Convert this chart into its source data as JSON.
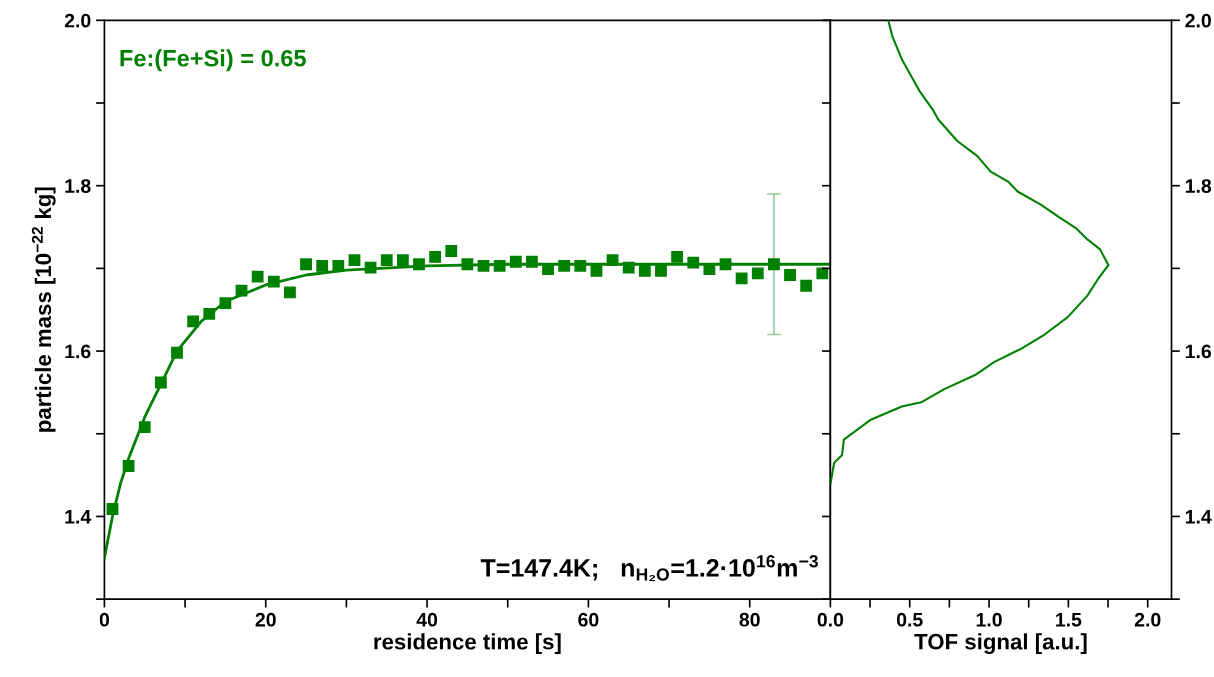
{
  "chart_data": [
    {
      "type": "scatter",
      "xlabel": "residence time [s]",
      "ylabel": "particle mass [10$^{−22}$ kg]",
      "annotations": [
        "Fe:(Fe+Si) = 0.65",
        "T=147.4K;   n$_{H₂O}$=1.2·10$^{16}$m$^{−3}$"
      ],
      "xlim": [
        0,
        90
      ],
      "xticks": [
        0,
        {
          "value": 10,
          "label": null
        },
        20,
        {
          "value": 30,
          "label": null
        },
        40,
        {
          "value": 50,
          "label": null
        },
        60,
        {
          "value": 70,
          "label": null
        },
        80
      ],
      "ylim": [
        1.3,
        2.0
      ],
      "yticks": [
        {
          "value": 1.3,
          "label": null
        },
        1.4,
        {
          "value": 1.5,
          "label": null
        },
        1.6,
        {
          "value": 1.7,
          "label": null
        },
        1.8,
        {
          "value": 1.9,
          "label": null
        },
        {
          "value": 2,
          "label": "2.0"
        }
      ],
      "grid": false,
      "legend": false,
      "series": [
        {
          "color": "#008000",
          "marker": "square",
          "x": [
            1,
            3,
            5,
            7,
            9,
            11,
            13,
            15,
            17,
            19,
            21,
            23,
            25,
            27,
            29,
            31,
            33,
            35,
            37,
            39,
            41,
            43,
            45,
            47,
            49,
            51,
            53,
            55,
            57,
            59,
            61,
            63,
            65,
            67,
            69,
            71,
            73,
            75,
            77,
            79,
            81,
            83,
            85,
            87,
            89
          ],
          "values": [
            1.409,
            1.461,
            1.508,
            1.562,
            1.598,
            1.636,
            1.645,
            1.658,
            1.673,
            1.69,
            1.684,
            1.671,
            1.705,
            1.703,
            1.703,
            1.71,
            1.701,
            1.71,
            1.71,
            1.705,
            1.714,
            1.721,
            1.705,
            1.703,
            1.703,
            1.708,
            1.708,
            1.699,
            1.703,
            1.703,
            1.697,
            1.71,
            1.701,
            1.697,
            1.697,
            1.714,
            1.707,
            1.699,
            1.705,
            1.688,
            1.694,
            1.705,
            1.692,
            1.679,
            1.694
          ],
          "errors": [
            null,
            null,
            null,
            null,
            null,
            null,
            null,
            null,
            null,
            null,
            null,
            null,
            null,
            null,
            null,
            null,
            null,
            null,
            null,
            null,
            null,
            null,
            null,
            null,
            null,
            null,
            null,
            null,
            null,
            null,
            null,
            null,
            null,
            null,
            null,
            null,
            null,
            null,
            null,
            null,
            null,
            0.085,
            null,
            null,
            null
          ]
        },
        {
          "type": "line",
          "color": "#008000",
          "line_style": "solid",
          "x": [
            0,
            1,
            2,
            3,
            5,
            7,
            9,
            12,
            15,
            20,
            25,
            30,
            40,
            50,
            90
          ],
          "values": [
            1.35,
            1.4,
            1.44,
            1.47,
            1.52,
            1.56,
            1.6,
            1.636,
            1.66,
            1.68,
            1.692,
            1.698,
            1.703,
            1.705,
            1.705
          ]
        }
      ]
    },
    {
      "type": "line",
      "xlabel": "TOF signal [a.u.]",
      "xlim": [
        0,
        2.15
      ],
      "xticks": [
        {
          "value": 0,
          "label": "0.0"
        },
        {
          "value": 0.25,
          "label": null
        },
        0.5,
        {
          "value": 0.75,
          "label": null
        },
        {
          "value": 1,
          "label": "1.0"
        },
        {
          "value": 1.25,
          "label": null
        },
        1.5,
        {
          "value": 1.75,
          "label": null
        },
        {
          "value": 2,
          "label": "2.0"
        }
      ],
      "ylim": [
        1.3,
        2.0
      ],
      "yticks": [
        {
          "value": 1.3,
          "label": null
        },
        1.4,
        {
          "value": 1.5,
          "label": null
        },
        1.6,
        {
          "value": 1.7,
          "label": null
        },
        1.8,
        {
          "value": 1.9,
          "label": null
        },
        {
          "value": 2,
          "label": "2.0"
        }
      ],
      "grid": false,
      "legend": false,
      "series": [
        {
          "color": "#008000",
          "line_style": "solid",
          "x": [
            0.365,
            0.39,
            0.45,
            0.56,
            0.645,
            0.68,
            0.8,
            0.925,
            1.01,
            1.12,
            1.18,
            1.326,
            1.448,
            1.545,
            1.62,
            1.7,
            1.752,
            1.69,
            1.62,
            1.496,
            1.35,
            1.204,
            1.034,
            0.912,
            0.718,
            0.572,
            0.45,
            0.365,
            0.255,
            0.17,
            0.085,
            0.073,
            0.024,
            0
          ],
          "values": [
            2.0,
            1.981,
            1.953,
            1.915,
            1.892,
            1.88,
            1.854,
            1.836,
            1.817,
            1.805,
            1.793,
            1.777,
            1.761,
            1.749,
            1.735,
            1.723,
            1.704,
            1.688,
            1.667,
            1.641,
            1.62,
            1.603,
            1.587,
            1.571,
            1.554,
            1.538,
            1.533,
            1.526,
            1.517,
            1.505,
            1.493,
            1.474,
            1.465,
            1.439
          ]
        }
      ]
    }
  ]
}
